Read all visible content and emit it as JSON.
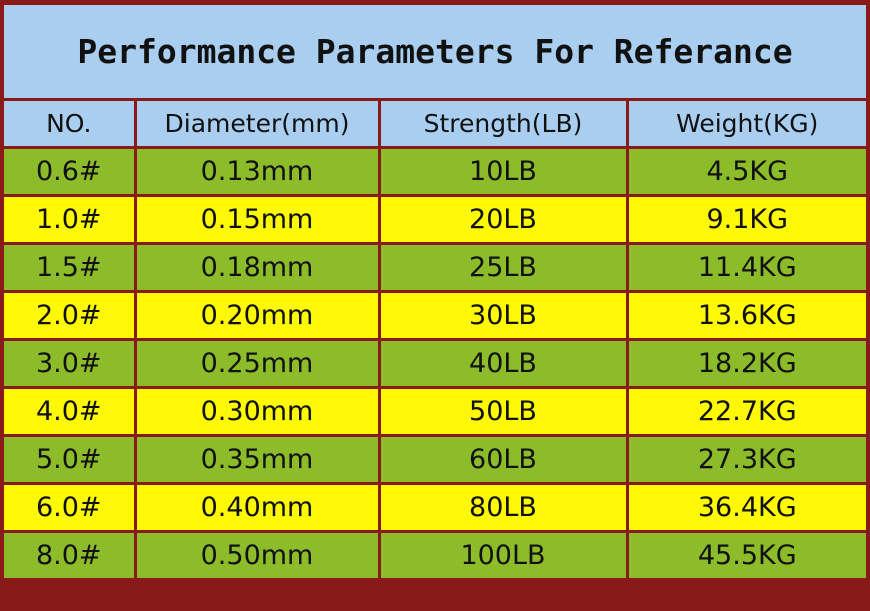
{
  "title": "Performance Parameters For Referance",
  "columns": [
    "NO.",
    "Diameter(mm)",
    "Strength(LB)",
    "Weight(KG)"
  ],
  "rows": [
    {
      "no": "0.6#",
      "diameter": "0.13mm",
      "strength": "10LB",
      "weight": "4.5KG"
    },
    {
      "no": "1.0#",
      "diameter": "0.15mm",
      "strength": "20LB",
      "weight": "9.1KG"
    },
    {
      "no": "1.5#",
      "diameter": "0.18mm",
      "strength": "25LB",
      "weight": "11.4KG"
    },
    {
      "no": "2.0#",
      "diameter": "0.20mm",
      "strength": "30LB",
      "weight": "13.6KG"
    },
    {
      "no": "3.0#",
      "diameter": "0.25mm",
      "strength": "40LB",
      "weight": "18.2KG"
    },
    {
      "no": "4.0#",
      "diameter": "0.30mm",
      "strength": "50LB",
      "weight": "22.7KG"
    },
    {
      "no": "5.0#",
      "diameter": "0.35mm",
      "strength": "60LB",
      "weight": "27.3KG"
    },
    {
      "no": "6.0#",
      "diameter": "0.40mm",
      "strength": "80LB",
      "weight": "36.4KG"
    },
    {
      "no": "8.0#",
      "diameter": "0.50mm",
      "strength": "100LB",
      "weight": "45.5KG"
    }
  ],
  "colors": {
    "frame": "#8a1a1a",
    "header": "#a9cef0",
    "green_row": "#8cbc2a",
    "yellow_row": "#fdf806"
  }
}
